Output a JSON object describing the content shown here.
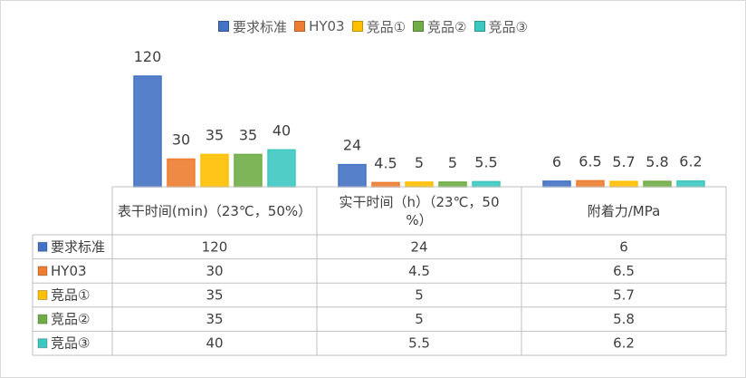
{
  "colors": {
    "要求标准": "#4472C4",
    "HY03": "#ED7D31",
    "竞品①": "#FFC000",
    "竞品②": "#70AD47",
    "竞品③": "#3CC8C0",
    "axis": "#bfbfbf",
    "table_border": "#bfbfbf"
  },
  "chart_data": {
    "type": "bar",
    "categories": [
      "表干时间(min)（23℃，50%）",
      "实干时间（h）（23℃，50%）",
      "附着力/MPa"
    ],
    "category_lines": [
      [
        "表干时间(min)（23℃，50%）"
      ],
      [
        "实干时间（h）（23℃，50",
        "%）"
      ],
      [
        "附着力/MPa"
      ]
    ],
    "series": [
      {
        "name": "要求标准",
        "values": [
          120,
          24,
          6
        ],
        "labels": [
          "120",
          "24",
          "6"
        ]
      },
      {
        "name": "HY03",
        "values": [
          30,
          4.5,
          6.5
        ],
        "labels": [
          "30",
          "4.5",
          "6.5"
        ]
      },
      {
        "name": "竞品①",
        "values": [
          35,
          5,
          5.7
        ],
        "labels": [
          "35",
          "5",
          "5.7"
        ]
      },
      {
        "name": "竞品②",
        "values": [
          35,
          5,
          5.8
        ],
        "labels": [
          "35",
          "5",
          "5.8"
        ]
      },
      {
        "name": "竞品③",
        "values": [
          40,
          5.5,
          6.2
        ],
        "labels": [
          "40",
          "5.5",
          "6.2"
        ]
      }
    ],
    "ylim": [
      0,
      120
    ],
    "legend_position": "top",
    "grid": false,
    "data_table": true
  }
}
